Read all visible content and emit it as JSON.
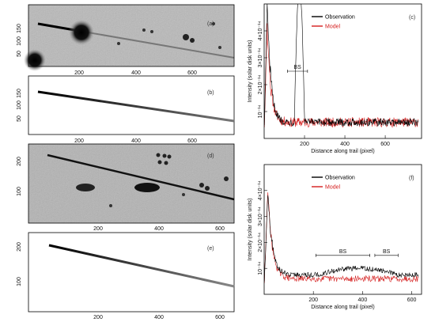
{
  "figure": {
    "panels": [
      {
        "id": "a",
        "tag": "(a)",
        "kind": "image",
        "xticks": [
          "200",
          "400",
          "600"
        ],
        "yticks": [
          "150",
          "100",
          "50"
        ]
      },
      {
        "id": "b",
        "tag": "(b)",
        "kind": "model-image",
        "xticks": [
          "200",
          "400",
          "600"
        ],
        "yticks": [
          "150",
          "100",
          "50"
        ]
      },
      {
        "id": "d",
        "tag": "(d)",
        "kind": "image",
        "xticks": [
          "200",
          "400",
          "600"
        ],
        "yticks": [
          "200",
          "100"
        ]
      },
      {
        "id": "e",
        "tag": "(e)",
        "kind": "model-image",
        "xticks": [
          "200",
          "400",
          "600"
        ],
        "yticks": [
          "200",
          "100"
        ]
      }
    ]
  },
  "chart_data": [
    {
      "id": "c",
      "type": "line",
      "tag": "(c)",
      "xlabel": "Distance along trail (pixel)",
      "ylabel": "Intensity (solar disk units)",
      "xlim": [
        0,
        780
      ],
      "ylim": [
        0,
        5e-14
      ],
      "xticks": [
        {
          "v": 200,
          "label": "200"
        },
        {
          "v": 400,
          "label": "400"
        },
        {
          "v": 600,
          "label": "600"
        }
      ],
      "yticks": [
        {
          "v": 1e-14,
          "label": "10⁻¹⁴"
        },
        {
          "v": 2e-14,
          "label": "2×10⁻¹⁴"
        },
        {
          "v": 3e-14,
          "label": "3×10⁻¹⁴"
        },
        {
          "v": 4e-14,
          "label": "4×10⁻¹⁴"
        }
      ],
      "legend": [
        {
          "name": "Observation",
          "color": "#000000"
        },
        {
          "name": "Model",
          "color": "#d41c1c"
        }
      ],
      "annotations": [
        {
          "label": "BS",
          "x0": 115,
          "x1": 215,
          "y": 2.5e-14
        }
      ],
      "series": [
        {
          "name": "Observation",
          "color": "#000000",
          "peak_x": 15,
          "peak_y": 5e-14,
          "floor": 6e-15,
          "noise": 1.4e-15,
          "bumps": [
            {
              "x0": 150,
              "x1": 200,
              "height": 5e-14
            }
          ]
        },
        {
          "name": "Model",
          "color": "#d41c1c",
          "peak_x": 15,
          "peak_y": 4.2e-14,
          "floor": 6e-15,
          "noise": 1.8e-15,
          "bumps": []
        }
      ]
    },
    {
      "id": "f",
      "type": "line",
      "tag": "(f)",
      "xlabel": "Distance along trail (pixel)",
      "ylabel": "Intensity (solar disk units)",
      "xlim": [
        0,
        640
      ],
      "ylim": [
        0,
        5e-14
      ],
      "xticks": [
        {
          "v": 200,
          "label": "200"
        },
        {
          "v": 400,
          "label": "400"
        },
        {
          "v": 600,
          "label": "600"
        }
      ],
      "yticks": [
        {
          "v": 1e-14,
          "label": "10⁻¹⁴"
        },
        {
          "v": 2e-14,
          "label": "2×10⁻¹⁴"
        },
        {
          "v": 3e-14,
          "label": "3×10⁻¹⁴"
        },
        {
          "v": 4e-14,
          "label": "4×10⁻¹⁴"
        }
      ],
      "legend": [
        {
          "name": "Observation",
          "color": "#000000"
        },
        {
          "name": "Model",
          "color": "#d41c1c"
        }
      ],
      "annotations": [
        {
          "label": "BS",
          "x0": 210,
          "x1": 430,
          "y": 1.5e-14
        },
        {
          "label": "BS",
          "x0": 450,
          "x1": 545,
          "y": 1.5e-14
        }
      ],
      "series": [
        {
          "name": "Observation",
          "color": "#000000",
          "peak_x": 15,
          "peak_y": 3.9e-14,
          "floor": 7.5e-15,
          "noise": 1e-15,
          "bumps": [
            {
              "x0": 220,
              "x1": 540,
              "height": 2.5e-15
            }
          ]
        },
        {
          "name": "Model",
          "color": "#d41c1c",
          "peak_x": 15,
          "peak_y": 4e-14,
          "floor": 6e-15,
          "noise": 1.2e-15,
          "bumps": []
        }
      ]
    }
  ]
}
